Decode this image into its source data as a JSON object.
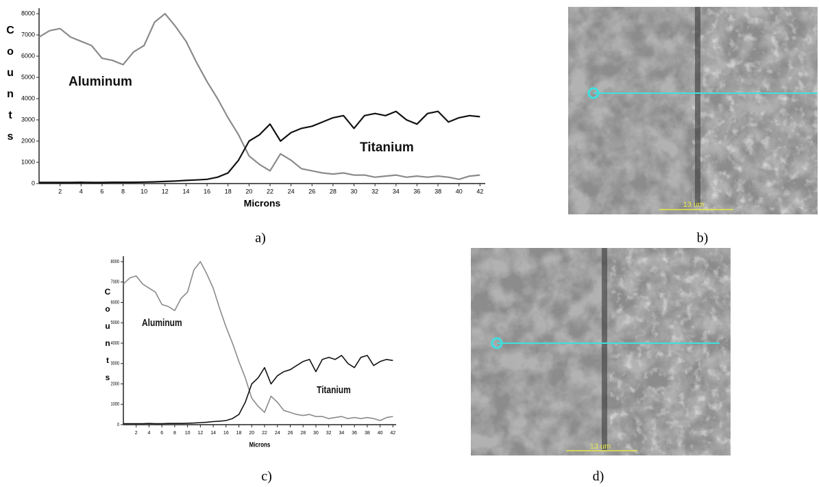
{
  "chart_data": [
    {
      "type": "line",
      "ylabel": "Counts",
      "xlabel": "Microns",
      "x": [
        0,
        1,
        2,
        3,
        4,
        5,
        6,
        7,
        8,
        9,
        10,
        11,
        12,
        13,
        14,
        15,
        16,
        17,
        18,
        19,
        20,
        21,
        22,
        23,
        24,
        25,
        26,
        27,
        28,
        29,
        30,
        31,
        32,
        33,
        34,
        35,
        36,
        37,
        38,
        39,
        40,
        41,
        42
      ],
      "series": [
        {
          "name": "Aluminum",
          "color": "#8a8a8a",
          "values": [
            6900,
            7200,
            7300,
            6900,
            6700,
            6500,
            5900,
            5800,
            5600,
            6200,
            6500,
            7600,
            8000,
            7400,
            6700,
            5700,
            4800,
            4000,
            3100,
            2300,
            1300,
            900,
            600,
            1400,
            1100,
            700,
            600,
            500,
            450,
            500,
            400,
            400,
            300,
            350,
            400,
            300,
            350,
            300,
            350,
            300,
            200,
            350,
            400
          ]
        },
        {
          "name": "Titanium",
          "color": "#111111",
          "values": [
            50,
            50,
            50,
            50,
            60,
            50,
            50,
            60,
            60,
            60,
            70,
            80,
            100,
            120,
            150,
            170,
            200,
            300,
            500,
            1100,
            2000,
            2300,
            2800,
            2000,
            2400,
            2600,
            2700,
            2900,
            3100,
            3200,
            2600,
            3200,
            3300,
            3200,
            3400,
            3000,
            2800,
            3300,
            3400,
            2900,
            3100,
            3200,
            3150
          ]
        }
      ],
      "xlim": [
        0,
        42.5
      ],
      "xticks": [
        2,
        4,
        6,
        8,
        10,
        12,
        14,
        16,
        18,
        20,
        22,
        24,
        26,
        28,
        30,
        32,
        34,
        36,
        38,
        40,
        42
      ],
      "ylim": [
        0,
        8000
      ],
      "yticks": [
        0,
        1000,
        2000,
        3000,
        4000,
        5000,
        6000,
        7000,
        8000
      ]
    },
    {
      "type": "line",
      "ylabel": "Counts",
      "xlabel": "Microns",
      "x": [
        0,
        1,
        2,
        3,
        4,
        5,
        6,
        7,
        8,
        9,
        10,
        11,
        12,
        13,
        14,
        15,
        16,
        17,
        18,
        19,
        20,
        21,
        22,
        23,
        24,
        25,
        26,
        27,
        28,
        29,
        30,
        31,
        32,
        33,
        34,
        35,
        36,
        37,
        38,
        39,
        40,
        41,
        42
      ],
      "series": [
        {
          "name": "Aluminum",
          "color": "#8a8a8a",
          "values": [
            6900,
            7200,
            7300,
            6900,
            6700,
            6500,
            5900,
            5800,
            5600,
            6200,
            6500,
            7600,
            8000,
            7400,
            6700,
            5700,
            4800,
            4000,
            3100,
            2300,
            1300,
            900,
            600,
            1400,
            1100,
            700,
            600,
            500,
            450,
            500,
            400,
            400,
            300,
            350,
            400,
            300,
            350,
            300,
            350,
            300,
            200,
            350,
            400
          ]
        },
        {
          "name": "Titanium",
          "color": "#111111",
          "values": [
            50,
            50,
            50,
            50,
            60,
            50,
            50,
            60,
            60,
            60,
            70,
            80,
            100,
            120,
            150,
            170,
            200,
            300,
            500,
            1100,
            2000,
            2300,
            2800,
            2000,
            2400,
            2600,
            2700,
            2900,
            3100,
            3200,
            2600,
            3200,
            3300,
            3200,
            3400,
            3000,
            2800,
            3300,
            3400,
            2900,
            3100,
            3200,
            3150
          ]
        }
      ],
      "xlim": [
        0,
        42.5
      ],
      "xticks": [
        2,
        4,
        6,
        8,
        10,
        12,
        14,
        16,
        18,
        20,
        22,
        24,
        26,
        28,
        30,
        32,
        34,
        36,
        38,
        40,
        42
      ],
      "ylim": [
        0,
        8000
      ],
      "yticks": [
        0,
        1000,
        2000,
        3000,
        4000,
        5000,
        6000,
        7000,
        8000
      ]
    }
  ],
  "captions": [
    "a)",
    "b)",
    "c)",
    "d)"
  ],
  "image_scale_labels": [
    "13 um",
    "13 um"
  ]
}
